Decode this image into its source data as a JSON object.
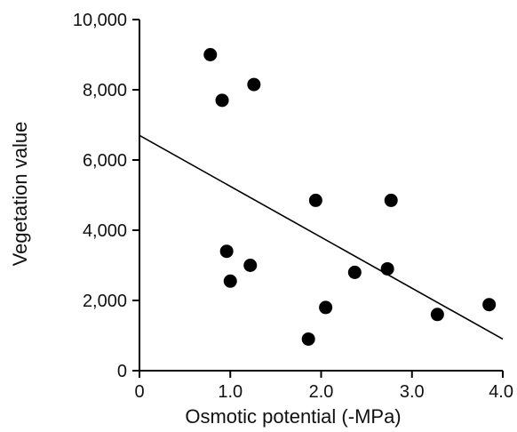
{
  "chart_data": {
    "type": "scatter",
    "title": "",
    "xlabel": "Osmotic potential (-MPa)",
    "ylabel": "Vegetation value",
    "xlim": [
      0,
      4.0
    ],
    "ylim": [
      0,
      10000
    ],
    "x_ticks": [
      {
        "value": 0,
        "label": "0"
      },
      {
        "value": 1.0,
        "label": "1.0"
      },
      {
        "value": 2.0,
        "label": "2.0"
      },
      {
        "value": 3.0,
        "label": "3.0"
      },
      {
        "value": 4.0,
        "label": "4.0"
      }
    ],
    "y_ticks": [
      {
        "value": 0,
        "label": "0"
      },
      {
        "value": 2000,
        "label": "2,000"
      },
      {
        "value": 4000,
        "label": "4,000"
      },
      {
        "value": 6000,
        "label": "6,000"
      },
      {
        "value": 8000,
        "label": "8,000"
      },
      {
        "value": 10000,
        "label": "10,000"
      }
    ],
    "grid": false,
    "legend": "none",
    "points": [
      {
        "x": 0.78,
        "y": 9000
      },
      {
        "x": 0.91,
        "y": 7700
      },
      {
        "x": 1.26,
        "y": 8150
      },
      {
        "x": 0.96,
        "y": 3400
      },
      {
        "x": 1.0,
        "y": 2550
      },
      {
        "x": 1.22,
        "y": 3000
      },
      {
        "x": 1.86,
        "y": 900
      },
      {
        "x": 1.94,
        "y": 4850
      },
      {
        "x": 2.05,
        "y": 1800
      },
      {
        "x": 2.37,
        "y": 2800
      },
      {
        "x": 2.73,
        "y": 2900
      },
      {
        "x": 2.77,
        "y": 4850
      },
      {
        "x": 3.28,
        "y": 1600
      },
      {
        "x": 3.85,
        "y": 1880
      }
    ],
    "trendline": {
      "x1": 0,
      "y1": 6700,
      "x2": 4.0,
      "y2": 900
    },
    "colors": {
      "points": "#000000",
      "line": "#000000",
      "axis": "#000000"
    }
  }
}
